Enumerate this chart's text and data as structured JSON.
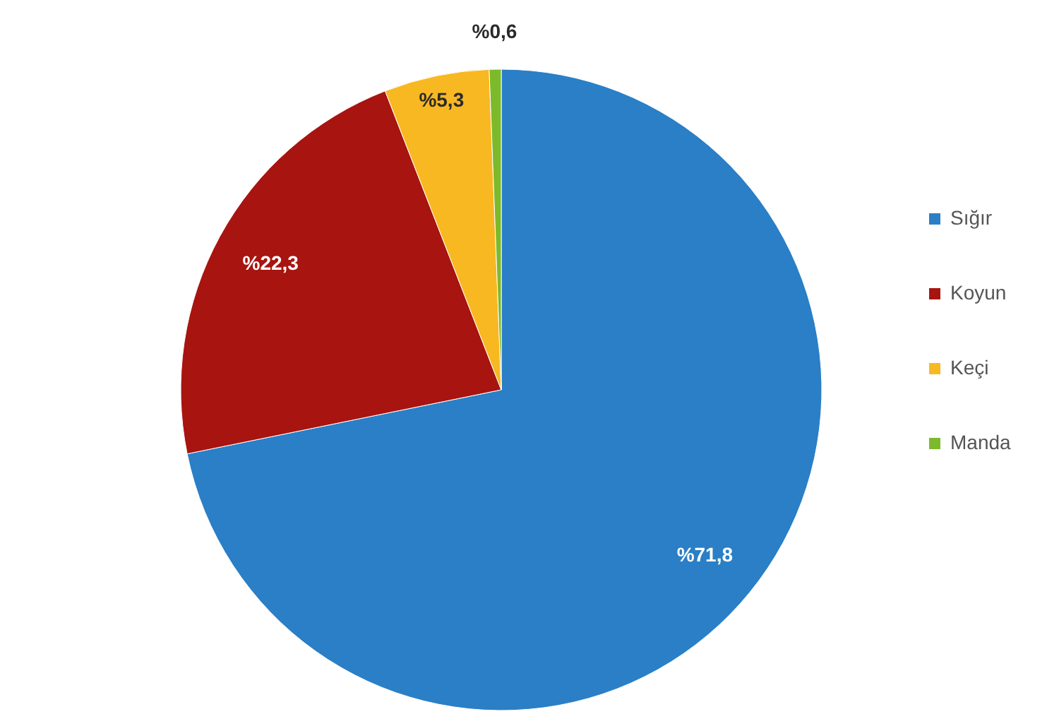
{
  "chart_data": {
    "type": "pie",
    "categories": [
      "Sığır",
      "Koyun",
      "Keçi",
      "Manda"
    ],
    "values": [
      71.8,
      22.3,
      5.3,
      0.6
    ],
    "colors": [
      "#2a7fc6",
      "#a8140f",
      "#f8b822",
      "#7cba2b"
    ],
    "value_labels": [
      "%71,8",
      "%22,3",
      "%5,3",
      "%0,6"
    ],
    "legend": "right"
  }
}
